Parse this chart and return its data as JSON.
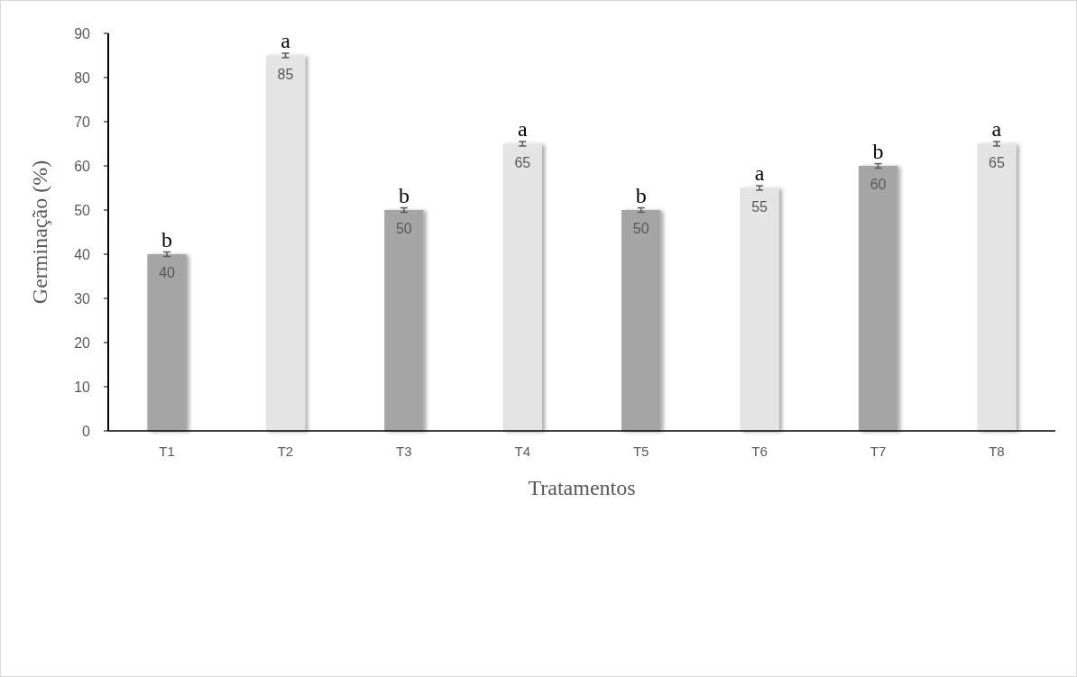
{
  "chart_data": {
    "type": "bar",
    "xlabel": "Tratamentos",
    "ylabel": "Germinação (%)",
    "categories": [
      "T1",
      "T2",
      "T3",
      "T4",
      "T5",
      "T6",
      "T7",
      "T8"
    ],
    "values": [
      40,
      85,
      50,
      65,
      50,
      55,
      60,
      65
    ],
    "colors": [
      "#a5a5a5",
      "#e4e4e4",
      "#a5a5a5",
      "#e4e4e4",
      "#a5a5a5",
      "#e4e4e4",
      "#a5a5a5",
      "#e4e4e4"
    ],
    "errors": [
      0.5,
      0.5,
      0.5,
      0.5,
      0.5,
      0.5,
      0.5,
      0.5
    ],
    "data_labels": true,
    "ylim": [
      0,
      90
    ],
    "yticks": [
      0,
      10,
      20,
      30,
      40,
      50,
      60,
      70,
      80,
      90
    ],
    "annotations": [
      {
        "text": "b",
        "x": "T1",
        "y": 40.5
      },
      {
        "text": "a",
        "x": "T2",
        "y": 85.5
      },
      {
        "text": "b",
        "x": "T3",
        "y": 50.5
      },
      {
        "text": "a",
        "x": "T4",
        "y": 65.5
      },
      {
        "text": "b",
        "x": "T5",
        "y": 50.5
      },
      {
        "text": "a",
        "x": "T6",
        "y": 55.5
      },
      {
        "text": "b",
        "x": "T7",
        "y": 60.5
      },
      {
        "text": "a",
        "x": "T8",
        "y": 65.5
      }
    ]
  }
}
